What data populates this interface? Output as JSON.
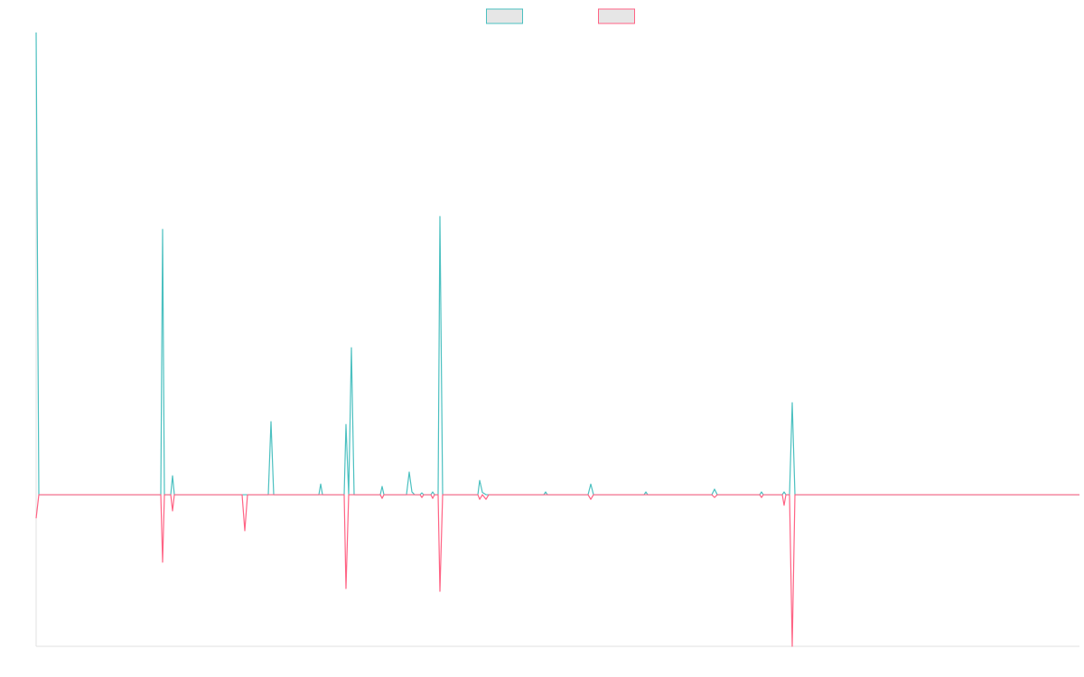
{
  "chart_data": {
    "type": "line",
    "x": [
      0,
      3,
      138,
      140,
      142,
      149,
      151,
      153,
      228,
      231,
      234,
      257,
      260,
      263,
      313,
      315,
      317,
      341,
      343,
      346,
      349,
      352,
      381,
      383,
      385,
      410,
      413,
      416,
      419,
      425,
      427,
      429,
      437,
      439,
      441,
      445,
      447,
      450,
      489,
      491,
      494,
      498,
      501,
      562,
      564,
      566,
      611,
      614,
      617,
      673,
      675,
      677,
      748,
      751,
      754,
      801,
      803,
      805,
      826,
      828,
      830,
      834,
      837,
      840,
      1155
    ],
    "series": [
      {
        "color": "#4bc0c0",
        "values": [
          100,
          0,
          0,
          57.4,
          0,
          0,
          4.1,
          0,
          0,
          0,
          0,
          0,
          15.8,
          0,
          0,
          2.3,
          0,
          0,
          15.2,
          0,
          31.8,
          0,
          0,
          1.8,
          0,
          0,
          4.9,
          0.6,
          0,
          0,
          0.4,
          0,
          0,
          0.6,
          0,
          0,
          60.2,
          0,
          0,
          3.1,
          0.5,
          0,
          0,
          0,
          0.6,
          0,
          0,
          2.3,
          0,
          0,
          0.6,
          0,
          0,
          1.2,
          0,
          0,
          0.6,
          0,
          0,
          0.6,
          0,
          0,
          19.9,
          0,
          0
        ]
      },
      {
        "color": "#ff6384",
        "values": [
          -5.1,
          0,
          0,
          -14.6,
          0,
          0,
          -3.5,
          0,
          0,
          -7.8,
          0,
          0,
          0,
          0,
          0,
          0,
          0,
          0,
          -20.3,
          0,
          0,
          0,
          0,
          -0.8,
          0,
          0,
          0,
          0,
          0,
          0,
          -0.6,
          0,
          0,
          -0.8,
          0,
          0,
          -20.9,
          0,
          0,
          -1,
          0,
          -1,
          0,
          0,
          0,
          0,
          0,
          -1,
          0,
          0,
          0,
          0,
          0,
          -0.6,
          0,
          0,
          -0.6,
          0,
          0,
          -2.3,
          0,
          0,
          -32.8,
          0,
          0
        ]
      }
    ],
    "xlim": [
      0,
      1155
    ],
    "ylim": [
      -32.8,
      100
    ],
    "legend": "top"
  }
}
